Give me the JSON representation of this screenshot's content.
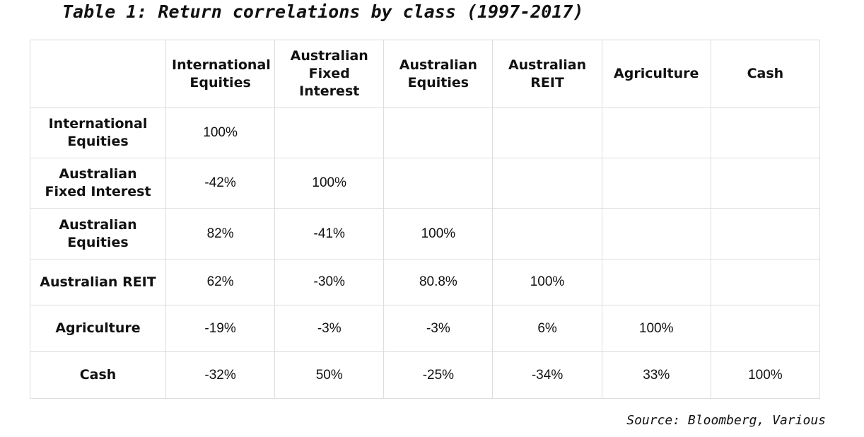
{
  "title": "Table 1: Return correlations by class (1997-2017)",
  "table": {
    "header": [
      "International Equities",
      "Australian Fixed Interest",
      "Australian Equities",
      "Australian REIT",
      "Agriculture",
      "Cash"
    ],
    "rows": [
      {
        "label": "International Equities",
        "cells": [
          "100%"
        ]
      },
      {
        "label": "Australian Fixed Interest",
        "cells": [
          "-42%",
          "100%"
        ]
      },
      {
        "label": "Australian Equities",
        "cells": [
          "82%",
          "-41%",
          "100%"
        ]
      },
      {
        "label": "Australian REIT",
        "cells": [
          "62%",
          "-30%",
          "80.8%",
          "100%"
        ]
      },
      {
        "label": "Agriculture",
        "cells": [
          "-19%",
          "-3%",
          "-3%",
          "6%",
          "100%"
        ]
      },
      {
        "label": "Cash",
        "cells": [
          "-32%",
          "50%",
          "-25%",
          "-34%",
          "33%",
          "100%"
        ]
      }
    ]
  },
  "source": "Source: Bloomberg, Various"
}
